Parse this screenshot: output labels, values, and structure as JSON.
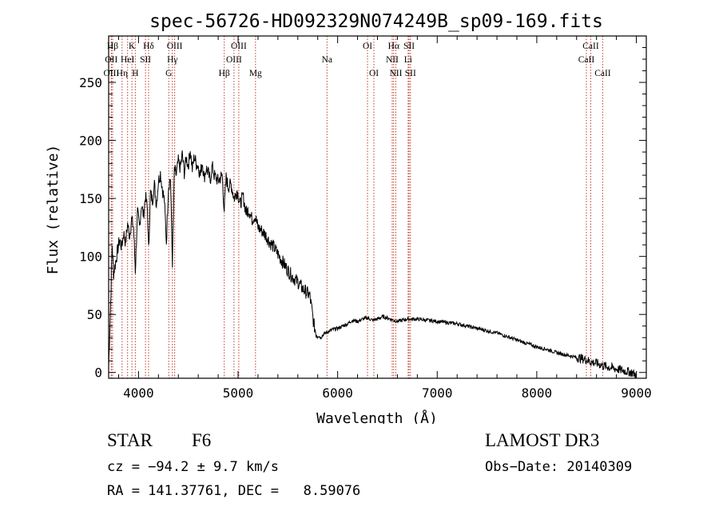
{
  "chart_data": {
    "type": "line",
    "title": "spec-56726-HD092329N074249B_sp09-169.fits",
    "xlabel": "Wavelength (Å)",
    "ylabel": "Flux (relative)",
    "xlim": [
      3700,
      9100
    ],
    "ylim": [
      -5,
      290
    ],
    "x_ticks": [
      4000,
      5000,
      6000,
      7000,
      8000,
      9000
    ],
    "x_tick_labels": [
      "4000",
      "5000",
      "6000",
      "7000",
      "8000",
      "9000"
    ],
    "y_ticks": [
      0,
      50,
      100,
      150,
      200,
      250
    ],
    "y_tick_labels": [
      "0",
      "50",
      "100",
      "150",
      "200",
      "250"
    ],
    "grid": false,
    "series": [
      {
        "name": "spectrum",
        "x": [
          3700,
          3720,
          3735,
          3750,
          3770,
          3790,
          3810,
          3830,
          3850,
          3870,
          3890,
          3910,
          3930,
          3950,
          3968,
          3990,
          4010,
          4030,
          4050,
          4070,
          4090,
          4101,
          4120,
          4140,
          4160,
          4180,
          4200,
          4220,
          4240,
          4260,
          4280,
          4300,
          4320,
          4340,
          4360,
          4380,
          4400,
          4420,
          4440,
          4460,
          4480,
          4500,
          4520,
          4540,
          4560,
          4580,
          4600,
          4620,
          4640,
          4660,
          4680,
          4700,
          4720,
          4740,
          4760,
          4800,
          4840,
          4861,
          4880,
          4900,
          4930,
          4960,
          4990,
          5020,
          5050,
          5080,
          5110,
          5140,
          5170,
          5200,
          5240,
          5280,
          5320,
          5360,
          5400,
          5450,
          5500,
          5550,
          5600,
          5650,
          5700,
          5720,
          5740,
          5760,
          5780,
          5800,
          5830,
          5860,
          5900,
          5950,
          6000,
          6050,
          6100,
          6150,
          6200,
          6250,
          6300,
          6350,
          6400,
          6450,
          6500,
          6563,
          6600,
          6650,
          6700,
          6800,
          6900,
          7000,
          7100,
          7200,
          7300,
          7400,
          7500,
          7600,
          7700,
          7800,
          7900,
          8000,
          8100,
          8200,
          8300,
          8400,
          8500,
          8542,
          8600,
          8662,
          8700,
          8750,
          8800,
          8850,
          8900,
          8950,
          9000
        ],
        "values": [
          5,
          60,
          110,
          85,
          95,
          105,
          115,
          108,
          120,
          112,
          128,
          118,
          132,
          125,
          88,
          138,
          125,
          145,
          135,
          152,
          140,
          105,
          155,
          148,
          162,
          145,
          165,
          172,
          158,
          148,
          112,
          160,
          168,
          95,
          175,
          170,
          182,
          176,
          188,
          172,
          185,
          178,
          192,
          175,
          186,
          180,
          178,
          170,
          182,
          168,
          176,
          172,
          165,
          178,
          170,
          165,
          170,
          140,
          168,
          160,
          162,
          150,
          157,
          145,
          152,
          138,
          140,
          132,
          135,
          125,
          122,
          118,
          112,
          108,
          102,
          95,
          88,
          82,
          78,
          72,
          68,
          66,
          55,
          42,
          35,
          32,
          30,
          33,
          35,
          37,
          38,
          40,
          42,
          45,
          44,
          46,
          47,
          45,
          46,
          48,
          47,
          45,
          44,
          45,
          46,
          46,
          45,
          44,
          43,
          42,
          40,
          38,
          36,
          34,
          31,
          28,
          25,
          22,
          20,
          17,
          15,
          13,
          11,
          9,
          8,
          6,
          5,
          4,
          3,
          2,
          1,
          0,
          -2
        ]
      }
    ],
    "spectral_lines": [
      {
        "label": "Hβ",
        "wave": 3740,
        "row": 1
      },
      {
        "label": "OII",
        "wave": 3727,
        "row": 2
      },
      {
        "label": "OIII",
        "wave": 3727,
        "row": 3
      },
      {
        "label": "K",
        "wave": 3934,
        "row": 1
      },
      {
        "label": "HeI",
        "wave": 3890,
        "row": 2
      },
      {
        "label": "Hη",
        "wave": 3835,
        "row": 3
      },
      {
        "label": "H",
        "wave": 3968,
        "row": 3
      },
      {
        "label": "SII",
        "wave": 4070,
        "row": 2
      },
      {
        "label": "Hδ",
        "wave": 4101,
        "row": 1
      },
      {
        "label": "OIII",
        "wave": 4363,
        "row": 1
      },
      {
        "label": "Hγ",
        "wave": 4340,
        "row": 2
      },
      {
        "label": "G",
        "wave": 4304,
        "row": 3
      },
      {
        "label": "Hβ",
        "wave": 4861,
        "row": 3
      },
      {
        "label": "OIII",
        "wave": 5007,
        "row": 1
      },
      {
        "label": "OIII",
        "wave": 4959,
        "row": 2
      },
      {
        "label": "Mg",
        "wave": 5175,
        "row": 3
      },
      {
        "label": "Na",
        "wave": 5893,
        "row": 2
      },
      {
        "label": "OI",
        "wave": 6300,
        "row": 1
      },
      {
        "label": "OI",
        "wave": 6364,
        "row": 3
      },
      {
        "label": "Hα",
        "wave": 6563,
        "row": 1
      },
      {
        "label": "NII",
        "wave": 6548,
        "row": 2
      },
      {
        "label": "NII",
        "wave": 6584,
        "row": 3
      },
      {
        "label": "SII",
        "wave": 6717,
        "row": 1
      },
      {
        "label": "Li",
        "wave": 6708,
        "row": 2
      },
      {
        "label": "SII",
        "wave": 6731,
        "row": 3
      },
      {
        "label": "CaII",
        "wave": 8542,
        "row": 1
      },
      {
        "label": "CaII",
        "wave": 8498,
        "row": 2
      },
      {
        "label": "CaII",
        "wave": 8662,
        "row": 3
      }
    ],
    "colors": {
      "spectrum": "#000000",
      "lines": "#c0392b"
    }
  },
  "info": {
    "object_type": "STAR",
    "subclass": "F6",
    "survey": "LAMOST DR3",
    "cz": "cz = −94.2 ± 9.7 km/s",
    "obs_date": "Obs−Date: 20140309",
    "coords": "RA = 141.37761, DEC =   8.59076"
  }
}
